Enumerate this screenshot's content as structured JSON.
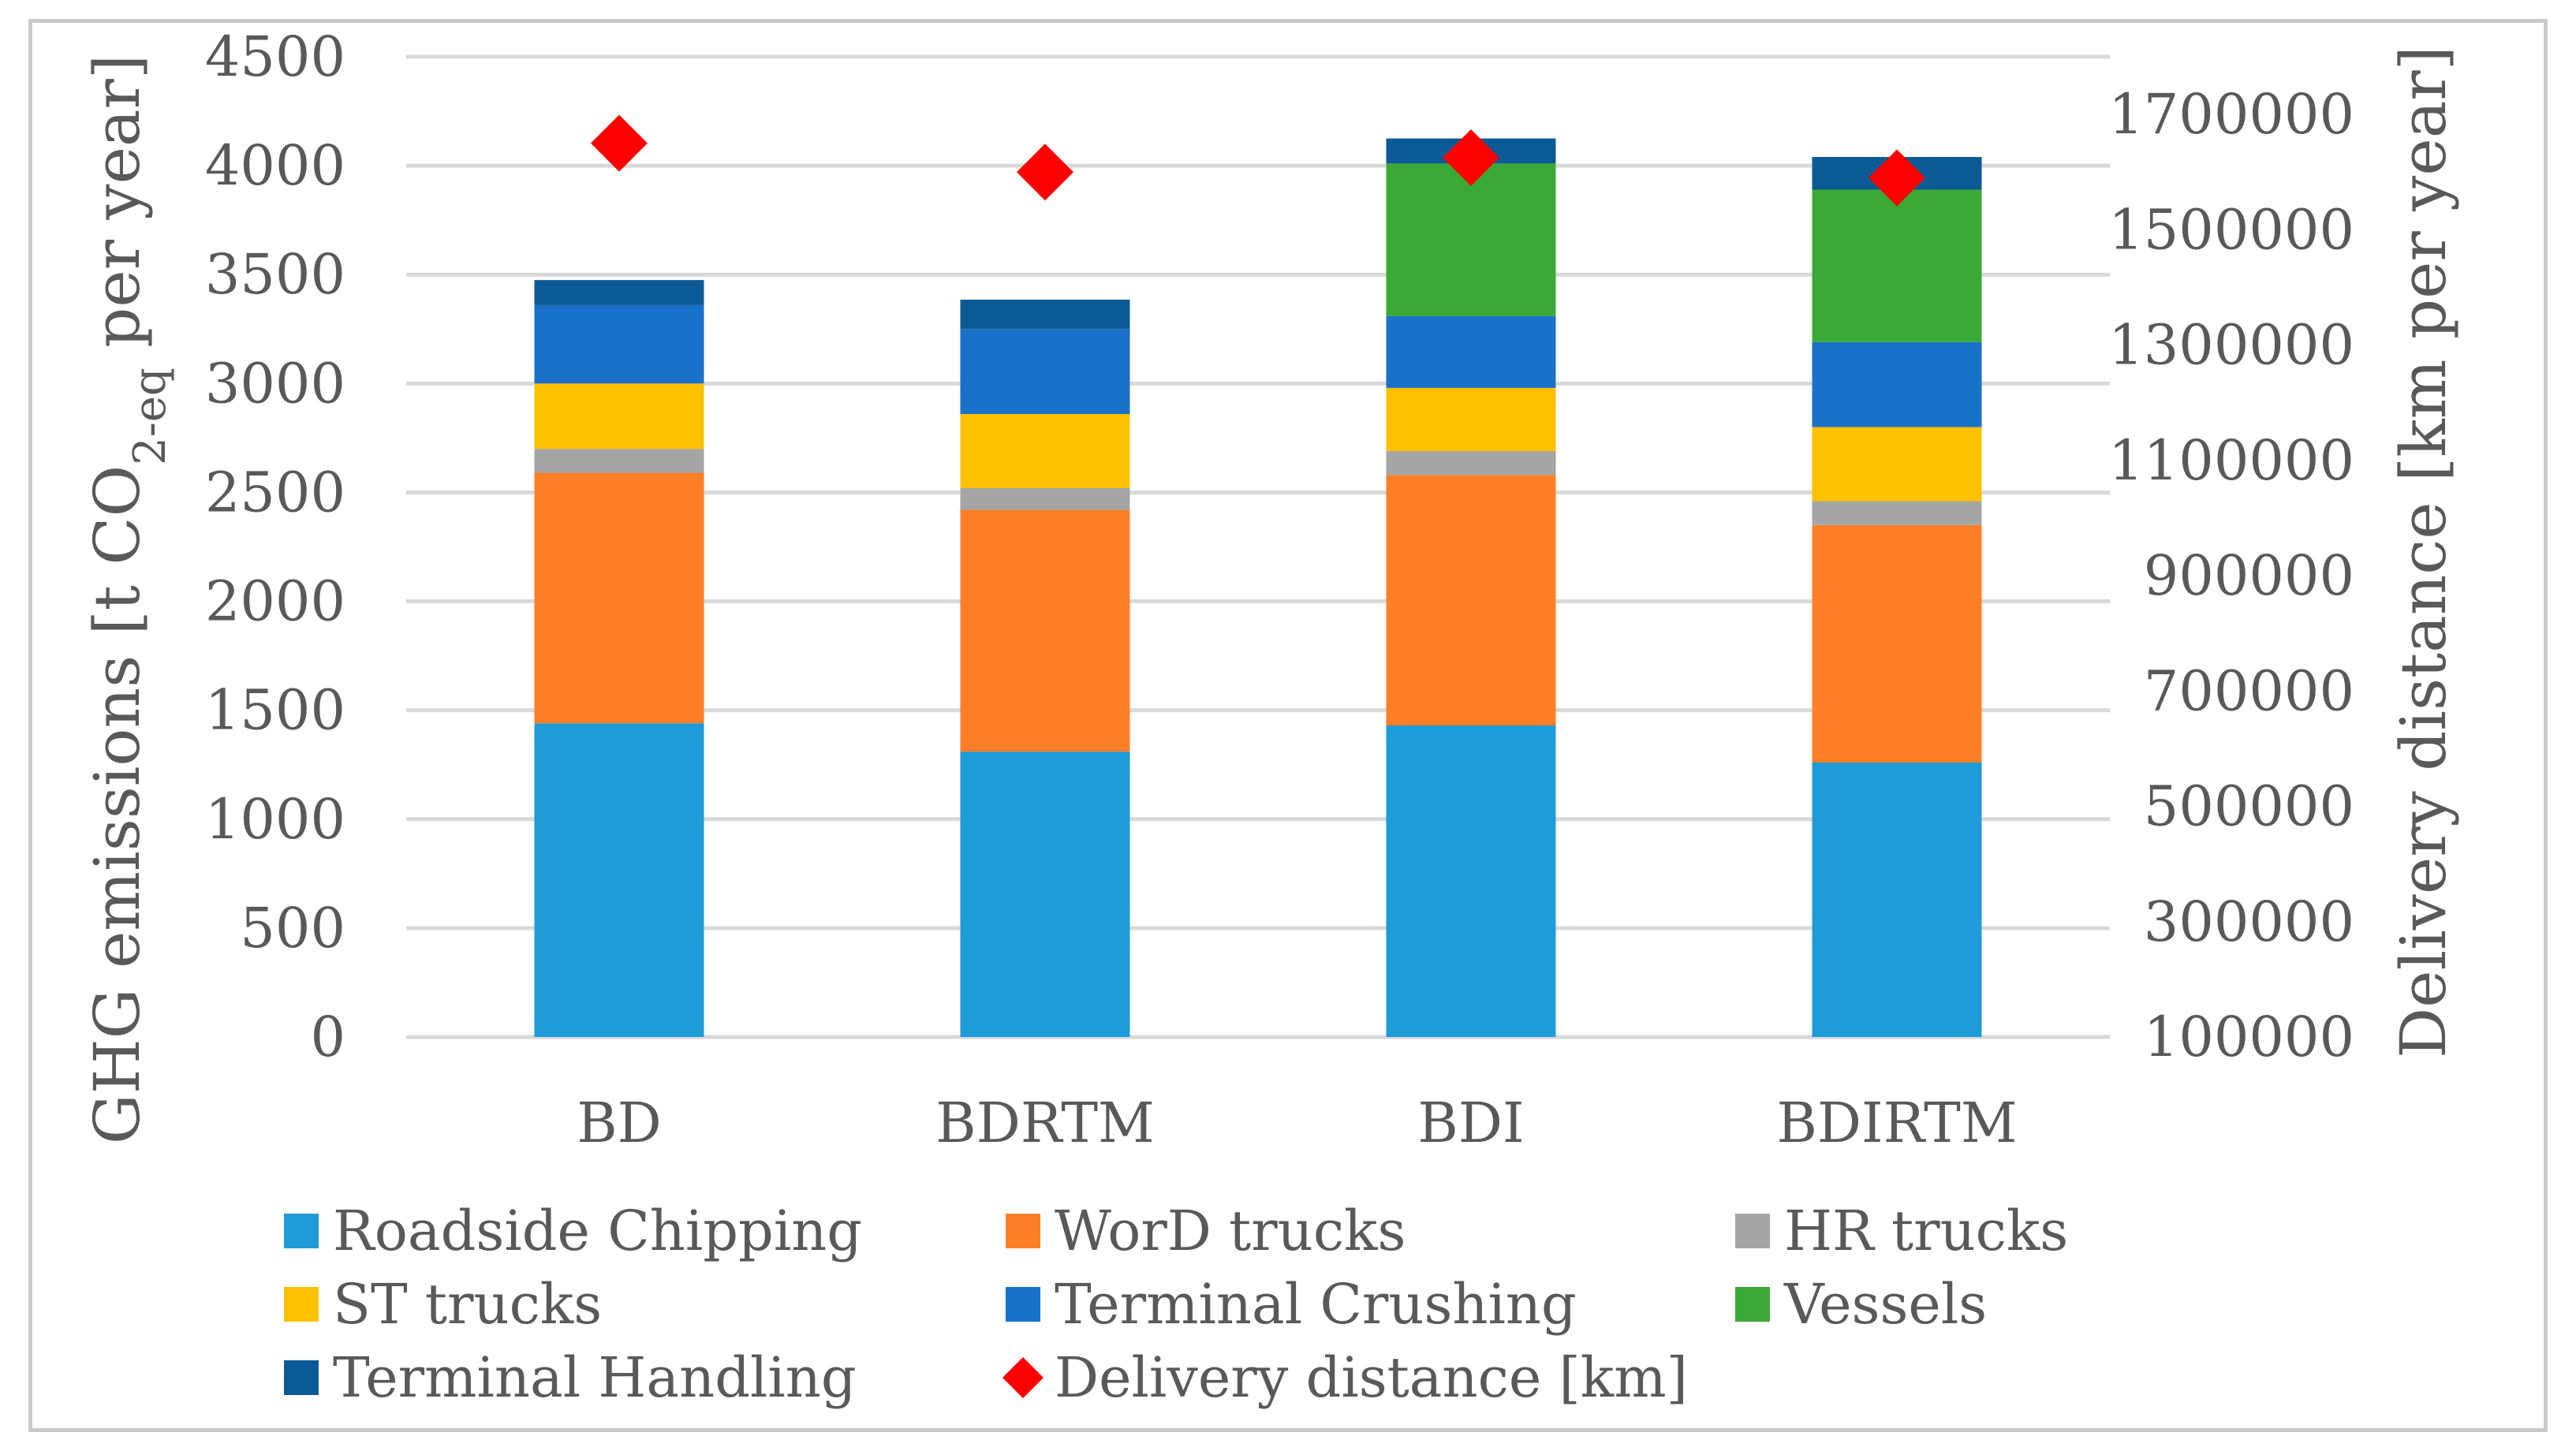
{
  "chart_data": {
    "type": "bar",
    "stacked": true,
    "categories": [
      "BD",
      "BDRTM",
      "BDI",
      "BDIRTM"
    ],
    "series": [
      {
        "name": "Roadside Chipping",
        "color": "#1F9BD7",
        "values": [
          1440,
          1310,
          1430,
          1260
        ]
      },
      {
        "name": "WorD trucks",
        "color": "#FF7F27",
        "values": [
          1150,
          1110,
          1150,
          1090
        ]
      },
      {
        "name": "HR trucks",
        "color": "#A5A5A5",
        "values": [
          110,
          100,
          110,
          110
        ]
      },
      {
        "name": "ST trucks",
        "color": "#FFC000",
        "values": [
          300,
          340,
          290,
          340
        ]
      },
      {
        "name": "Terminal Crushing",
        "color": "#1A71C9",
        "values": [
          360,
          390,
          330,
          390
        ]
      },
      {
        "name": "Vessels",
        "color": "#3AA935",
        "values": [
          0,
          0,
          700,
          700
        ]
      },
      {
        "name": "Terminal Handling",
        "color": "#0B5A96",
        "values": [
          115,
          135,
          115,
          150
        ]
      }
    ],
    "secondary_series": {
      "name": "Delivery distance [km]",
      "type": "scatter",
      "marker": "diamond",
      "color": "#FF0000",
      "values": [
        1650000,
        1600000,
        1625000,
        1590000
      ]
    },
    "ylabel": "GHG emissions [t CO2-eq per year]",
    "ylabel_parts": {
      "before": "GHG emissions [t CO",
      "sub": "2-eq",
      "after": " per year]"
    },
    "y2label": "Delivery distance [km per year]",
    "ylim": [
      0,
      4500
    ],
    "yticks": [
      "0",
      "500",
      "1000",
      "1500",
      "2000",
      "2500",
      "3000",
      "3500",
      "4000",
      "4500"
    ],
    "y2lim": [
      100000,
      1800000
    ],
    "y2ticks": [
      "100000",
      "300000",
      "500000",
      "700000",
      "900000",
      "1100000",
      "1300000",
      "1500000",
      "1700000"
    ],
    "grid": true,
    "legend_position": "bottom"
  }
}
